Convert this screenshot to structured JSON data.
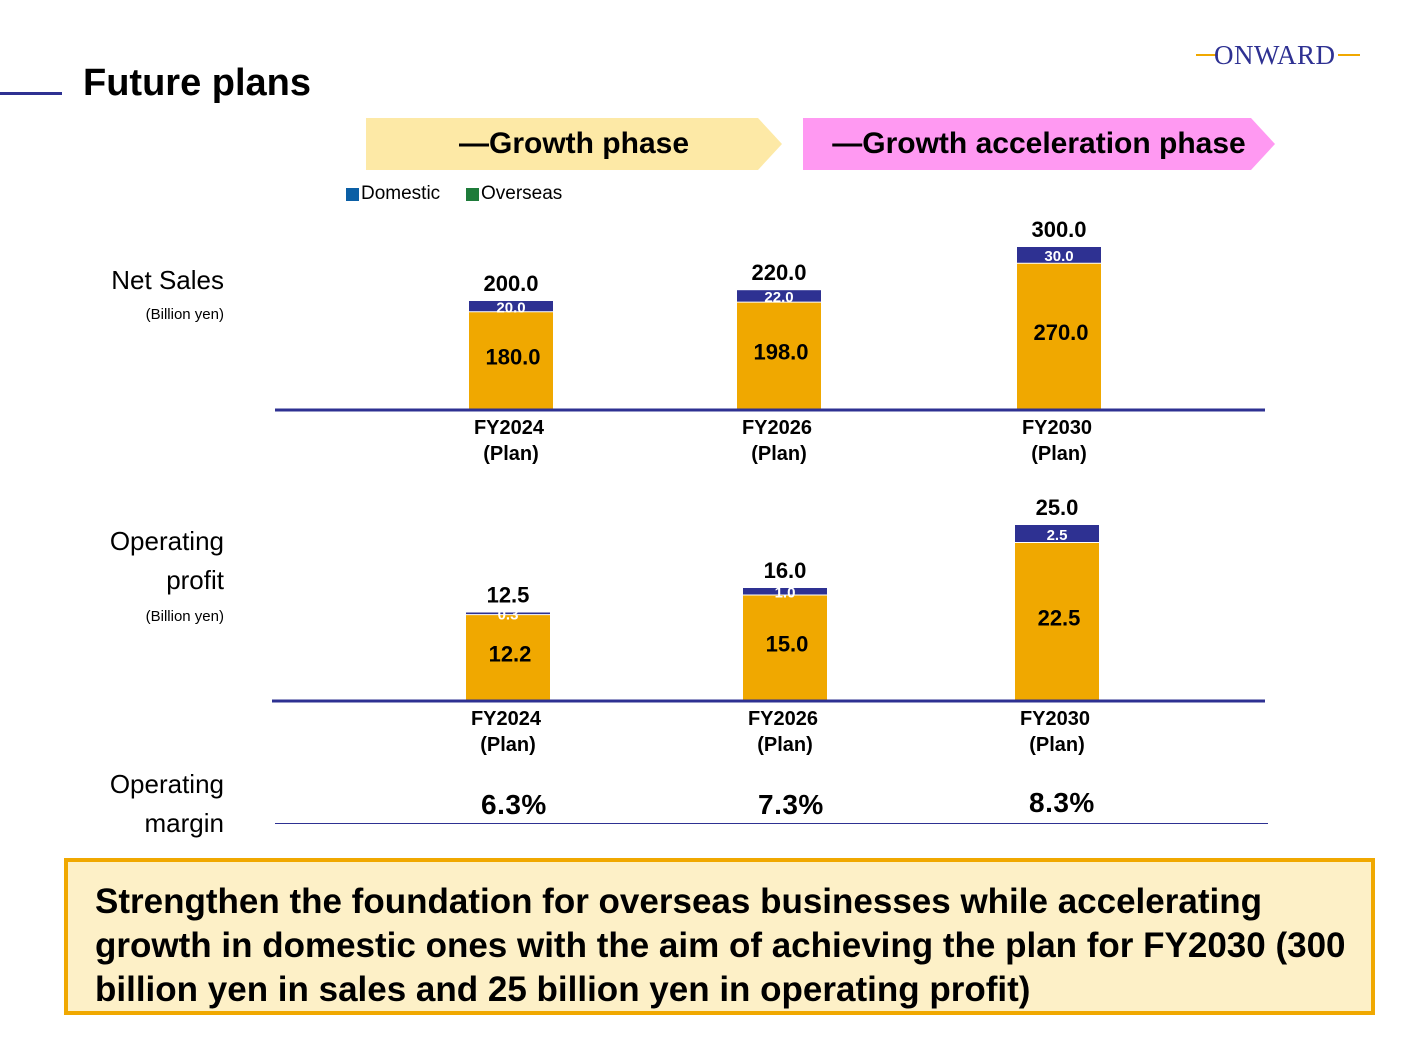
{
  "header": {
    "title": "Future plans",
    "logo_text": "ONWARD"
  },
  "phases": [
    {
      "label": "—Growth phase",
      "color": "#fde9a6"
    },
    {
      "label": "—Growth acceleration phase",
      "color": "#ff99f2"
    }
  ],
  "legend": [
    {
      "label": "Domestic",
      "color": "#0b5fa5"
    },
    {
      "label": "Overseas",
      "color": "#1e7b3a"
    }
  ],
  "row_labels": {
    "net_sales": "Net Sales",
    "net_sales_unit": "(Billion yen)",
    "operating_profit_1": "Operating",
    "operating_profit_2": "profit",
    "operating_profit_unit": "(Billion yen)",
    "operating_margin_1": "Operating",
    "operating_margin_2": "margin"
  },
  "operating_margin": [
    "6.3%",
    "7.3%",
    "8.3%"
  ],
  "summary": "Strengthen the foundation for overseas businesses while accelerating growth in domestic ones with the aim of achieving the plan for FY2030 (300 billion yen in sales and 25 billion yen in operating profit)",
  "colors": {
    "domestic_bar": "#f0a800",
    "overseas_bar": "#2e3192",
    "axis": "#2e3192"
  },
  "chart_data": [
    {
      "type": "bar",
      "stacked": true,
      "categories": [
        [
          "FY2024",
          "(Plan)"
        ],
        [
          "FY2026",
          "(Plan)"
        ],
        [
          "FY2030",
          "(Plan)"
        ]
      ],
      "series": [
        {
          "values": [
            180.0,
            198.0,
            270.0
          ],
          "labels": [
            "180.0",
            "198.0",
            "270.0"
          ]
        },
        {
          "values": [
            20.0,
            22.0,
            30.0
          ],
          "labels": [
            "20.0",
            "22.0",
            "30.0"
          ]
        }
      ],
      "totals": [
        "200.0",
        "220.0",
        "300.0"
      ],
      "ylabel": "Net Sales (Billion yen)"
    },
    {
      "type": "bar",
      "stacked": true,
      "categories": [
        [
          "FY2024",
          "(Plan)"
        ],
        [
          "FY2026",
          "(Plan)"
        ],
        [
          "FY2030",
          "(Plan)"
        ]
      ],
      "series": [
        {
          "values": [
            12.2,
            15.0,
            22.5
          ],
          "labels": [
            "12.2",
            "15.0",
            "22.5"
          ]
        },
        {
          "values": [
            0.3,
            1.0,
            2.5
          ],
          "labels": [
            "0.3",
            "1.0",
            "2.5"
          ]
        }
      ],
      "totals": [
        "12.5",
        "16.0",
        "25.0"
      ],
      "ylabel": "Operating profit (Billion yen)"
    }
  ]
}
